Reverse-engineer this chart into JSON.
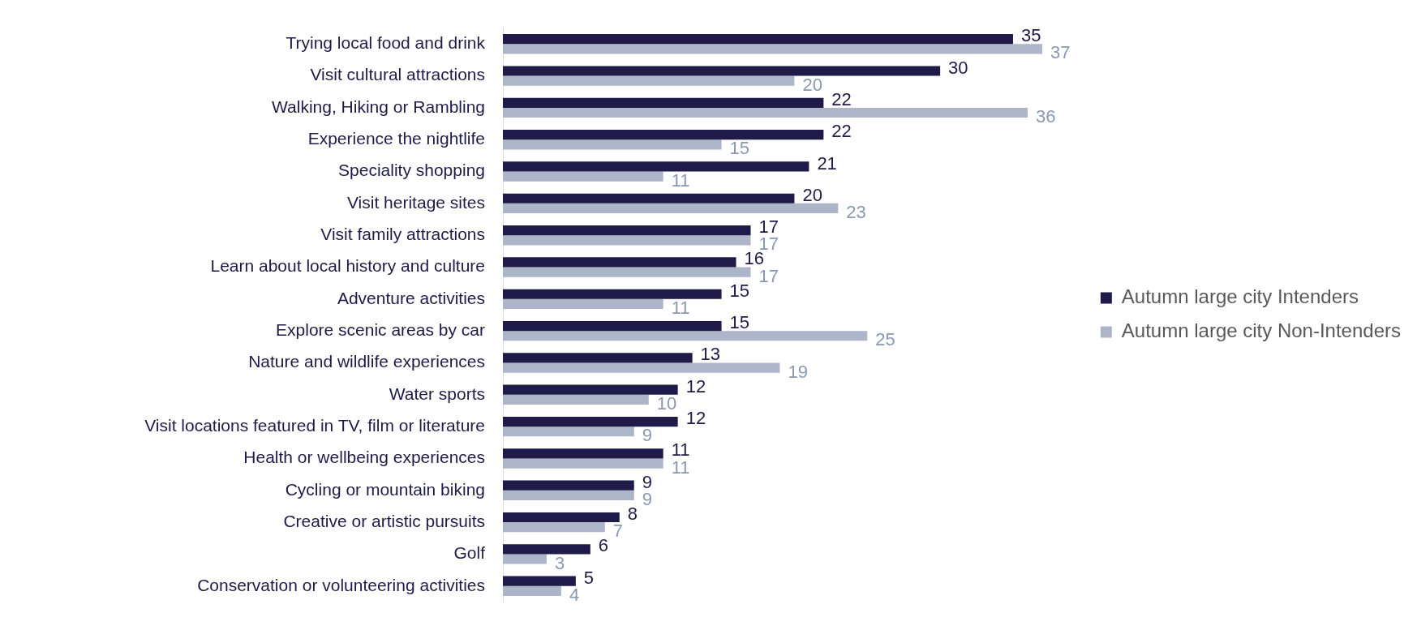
{
  "chart_data": {
    "type": "bar",
    "orientation": "horizontal",
    "data_labels": true,
    "legend": "right",
    "categories": [
      "Trying local food and drink",
      "Visit cultural attractions",
      "Walking, Hiking or Rambling",
      "Experience the nightlife",
      "Speciality shopping",
      "Visit heritage sites",
      "Visit family attractions",
      "Learn about local history and culture",
      "Adventure activities",
      "Explore scenic areas by car",
      "Nature and wildlife experiences",
      "Water sports",
      "Visit locations featured in TV, film or literature",
      "Health or wellbeing experiences",
      "Cycling or mountain biking",
      "Creative or artistic pursuits",
      "Golf",
      "Conservation or volunteering activities"
    ],
    "series": [
      {
        "name": "Autumn large city Intenders",
        "color": "#1f1a47",
        "values": [
          35,
          30,
          22,
          22,
          21,
          20,
          17,
          16,
          15,
          15,
          13,
          12,
          12,
          11,
          9,
          8,
          6,
          5
        ]
      },
      {
        "name": "Autumn large city Non-Intenders",
        "color": "#adb5c8",
        "values": [
          37,
          20,
          36,
          15,
          11,
          23,
          17,
          17,
          11,
          25,
          19,
          10,
          9,
          11,
          9,
          7,
          3,
          4
        ]
      }
    ]
  }
}
